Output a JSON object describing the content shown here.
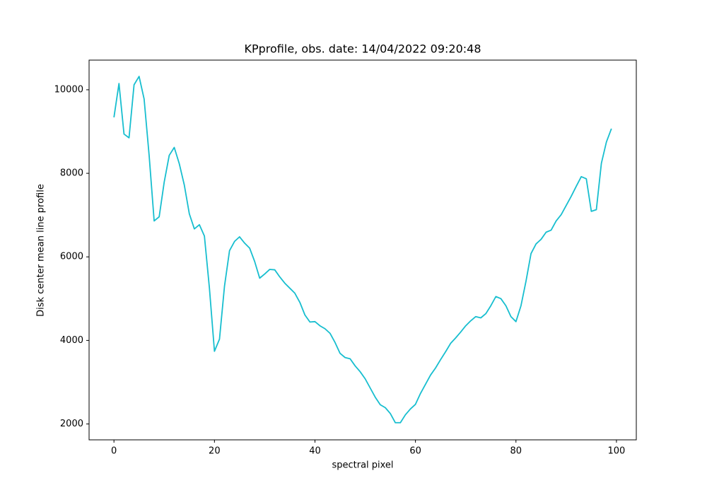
{
  "chart_data": {
    "type": "line",
    "title": "KPprofile, obs. date: 14/04/2022 09:20:48",
    "x_label": "spectral pixel",
    "y_label": "Disk center mean line profile",
    "x": [
      0,
      1,
      2,
      3,
      4,
      5,
      6,
      7,
      8,
      9,
      10,
      11,
      12,
      13,
      14,
      15,
      16,
      17,
      18,
      19,
      20,
      21,
      22,
      23,
      24,
      25,
      26,
      27,
      28,
      29,
      30,
      31,
      32,
      33,
      34,
      35,
      36,
      37,
      38,
      39,
      40,
      41,
      42,
      43,
      44,
      45,
      46,
      47,
      48,
      49,
      50,
      51,
      52,
      53,
      54,
      55,
      56,
      57,
      58,
      59,
      60,
      61,
      62,
      63,
      64,
      65,
      66,
      67,
      68,
      69,
      70,
      71,
      72,
      73,
      74,
      75,
      76,
      77,
      78,
      79,
      80,
      81,
      82,
      83,
      84,
      85,
      86,
      87,
      88,
      89,
      90,
      91,
      92,
      93,
      94,
      95,
      96,
      97,
      98,
      99
    ],
    "series": [
      {
        "color": "#17becf",
        "values": [
          9340,
          10150,
          8940,
          8850,
          10120,
          10320,
          9780,
          8430,
          6860,
          6960,
          7790,
          8430,
          8620,
          8230,
          7720,
          7030,
          6670,
          6770,
          6500,
          5250,
          3740,
          4030,
          5300,
          6150,
          6370,
          6480,
          6330,
          6210,
          5890,
          5490,
          5590,
          5700,
          5690,
          5520,
          5370,
          5250,
          5130,
          4910,
          4610,
          4440,
          4450,
          4350,
          4280,
          4170,
          3950,
          3690,
          3590,
          3560,
          3390,
          3250,
          3080,
          2860,
          2640,
          2460,
          2390,
          2250,
          2030,
          2030,
          2220,
          2360,
          2470,
          2730,
          2950,
          3170,
          3340,
          3540,
          3730,
          3930,
          4060,
          4200,
          4350,
          4470,
          4570,
          4540,
          4640,
          4830,
          5050,
          5000,
          4830,
          4570,
          4450,
          4830,
          5420,
          6080,
          6310,
          6420,
          6590,
          6640,
          6860,
          7010,
          7230,
          7450,
          7690,
          7920,
          7870,
          7090,
          7130,
          8240,
          8750,
          9070
        ]
      }
    ],
    "xlim": [
      -4.95,
      103.95
    ],
    "ylim": [
      1620,
      10710
    ],
    "xticks": [
      0,
      20,
      40,
      60,
      80,
      100
    ],
    "yticks": [
      2000,
      4000,
      6000,
      8000,
      10000
    ]
  }
}
